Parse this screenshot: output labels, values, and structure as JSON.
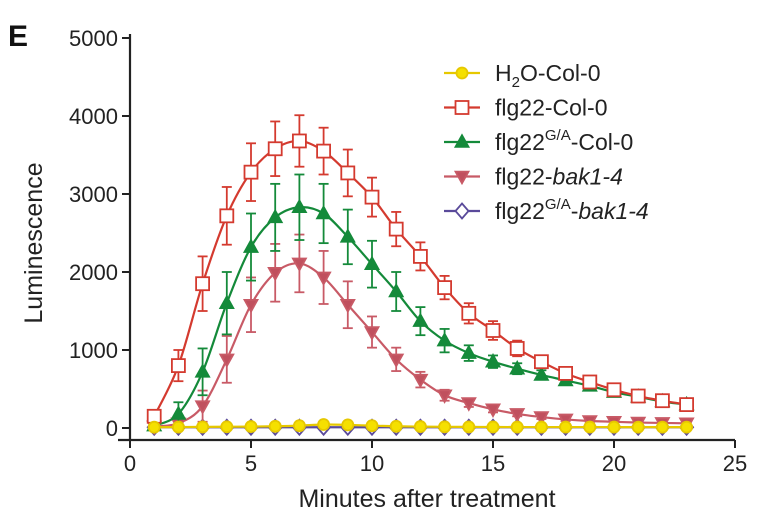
{
  "panel_label": "E",
  "chart_data": {
    "type": "line",
    "title": "",
    "xlabel": "Minutes after treatment",
    "ylabel": "Luminescence",
    "xlim": [
      0,
      25
    ],
    "ylim": [
      0,
      5000
    ],
    "xticks": [
      0,
      5,
      10,
      15,
      20,
      25
    ],
    "yticks": [
      0,
      1000,
      2000,
      3000,
      4000,
      5000
    ],
    "x": [
      1,
      2,
      3,
      4,
      5,
      6,
      7,
      8,
      9,
      10,
      11,
      12,
      13,
      14,
      15,
      16,
      17,
      18,
      19,
      20,
      21,
      22,
      23
    ],
    "legend_position": "top-right",
    "series": [
      {
        "id": "h2o",
        "legend": {
          "pre": "H",
          "sub": "2",
          "sup": "",
          "mid": "O-Col-0",
          "italic": ""
        },
        "color": "#e6c800",
        "fill": "#f5e000",
        "marker": "circle",
        "values": [
          10,
          12,
          14,
          16,
          18,
          22,
          30,
          45,
          40,
          30,
          22,
          18,
          15,
          14,
          13,
          12,
          12,
          12,
          12,
          12,
          11,
          11,
          11
        ],
        "errors": [
          5,
          5,
          5,
          5,
          5,
          8,
          15,
          25,
          20,
          15,
          10,
          8,
          6,
          5,
          5,
          5,
          5,
          5,
          5,
          5,
          5,
          5,
          5
        ]
      },
      {
        "id": "flg22_col0",
        "legend": {
          "pre": "flg22",
          "sub": "",
          "sup": "",
          "mid": "-Col-0",
          "italic": ""
        },
        "color": "#d43a2f",
        "fill": "#ffffff",
        "marker": "square",
        "values": [
          150,
          800,
          1850,
          2720,
          3280,
          3580,
          3680,
          3550,
          3270,
          2960,
          2550,
          2200,
          1800,
          1470,
          1250,
          1020,
          850,
          700,
          590,
          490,
          410,
          350,
          300
        ],
        "errors": [
          40,
          200,
          350,
          370,
          370,
          350,
          330,
          300,
          300,
          250,
          220,
          180,
          150,
          130,
          120,
          100,
          80,
          70,
          60,
          50,
          40,
          30,
          25
        ]
      },
      {
        "id": "flg22ga_col0",
        "legend": {
          "pre": "flg22",
          "sub": "",
          "sup": "G/A",
          "mid": "-Col-0",
          "italic": ""
        },
        "color": "#148a3a",
        "fill": "#148a3a",
        "marker": "triangle-up",
        "values": [
          30,
          180,
          720,
          1600,
          2320,
          2700,
          2830,
          2750,
          2450,
          2100,
          1750,
          1370,
          1120,
          960,
          850,
          760,
          680,
          610,
          540,
          460,
          400,
          340,
          300
        ],
        "errors": [
          20,
          150,
          300,
          400,
          430,
          430,
          420,
          380,
          350,
          300,
          250,
          180,
          150,
          100,
          80,
          70,
          60,
          50,
          50,
          40,
          40,
          30,
          30
        ]
      },
      {
        "id": "flg22_bak14",
        "legend": {
          "pre": "flg22-",
          "sub": "",
          "sup": "",
          "mid": "",
          "italic": "bak1-4"
        },
        "color": "#c85a66",
        "fill": "#c0505e",
        "marker": "triangle-down",
        "values": [
          20,
          60,
          280,
          880,
          1580,
          1990,
          2110,
          1930,
          1580,
          1230,
          880,
          620,
          420,
          320,
          240,
          180,
          140,
          110,
          90,
          80,
          70,
          65,
          60
        ],
        "errors": [
          10,
          30,
          200,
          300,
          350,
          370,
          370,
          340,
          300,
          200,
          150,
          100,
          70,
          50,
          40,
          30,
          25,
          20,
          20,
          15,
          15,
          10,
          10
        ]
      },
      {
        "id": "flg22ga_bak14",
        "legend": {
          "pre": "flg22",
          "sub": "",
          "sup": "G/A",
          "mid": "-",
          "italic": "bak1-4"
        },
        "color": "#5a4a9a",
        "fill": "#ffffff",
        "marker": "diamond",
        "values": [
          10,
          10,
          10,
          10,
          10,
          10,
          10,
          10,
          10,
          10,
          10,
          10,
          10,
          10,
          10,
          10,
          10,
          10,
          10,
          10,
          10,
          10,
          10
        ],
        "errors": [
          5,
          5,
          5,
          5,
          5,
          5,
          5,
          5,
          5,
          5,
          5,
          5,
          5,
          5,
          5,
          5,
          5,
          5,
          5,
          5,
          5,
          5,
          5
        ]
      }
    ]
  }
}
